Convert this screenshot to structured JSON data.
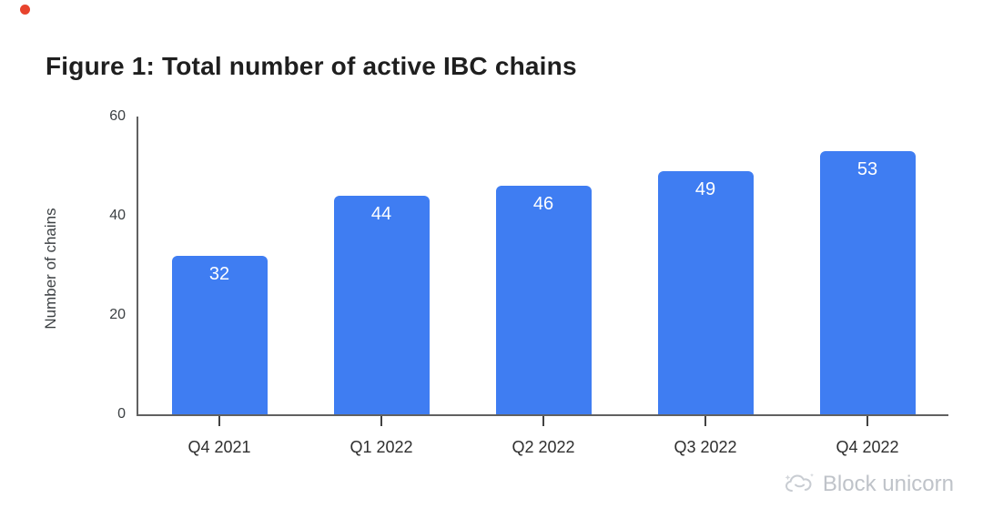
{
  "page": {
    "background": "#ffffff"
  },
  "chart_data": {
    "type": "bar",
    "title": "Figure 1: Total number of active IBC chains",
    "categories": [
      "Q4 2021",
      "Q1 2022",
      "Q2 2022",
      "Q3 2022",
      "Q4 2022"
    ],
    "values": [
      32,
      44,
      46,
      49,
      53
    ],
    "xlabel": "",
    "ylabel": "Number of chains",
    "ylim": [
      0,
      60
    ],
    "yticks": [
      0,
      20,
      40,
      60
    ],
    "grid": false,
    "legend": "none",
    "bar_color": "#3f7df2",
    "value_label_color": "#ffffff"
  },
  "colors": {
    "bar": "#3f7df2",
    "axis": "#616161",
    "accent_dot": "#e8432d",
    "watermark_text": "#bfc3c9"
  },
  "watermark": {
    "text": "Block unicorn"
  }
}
